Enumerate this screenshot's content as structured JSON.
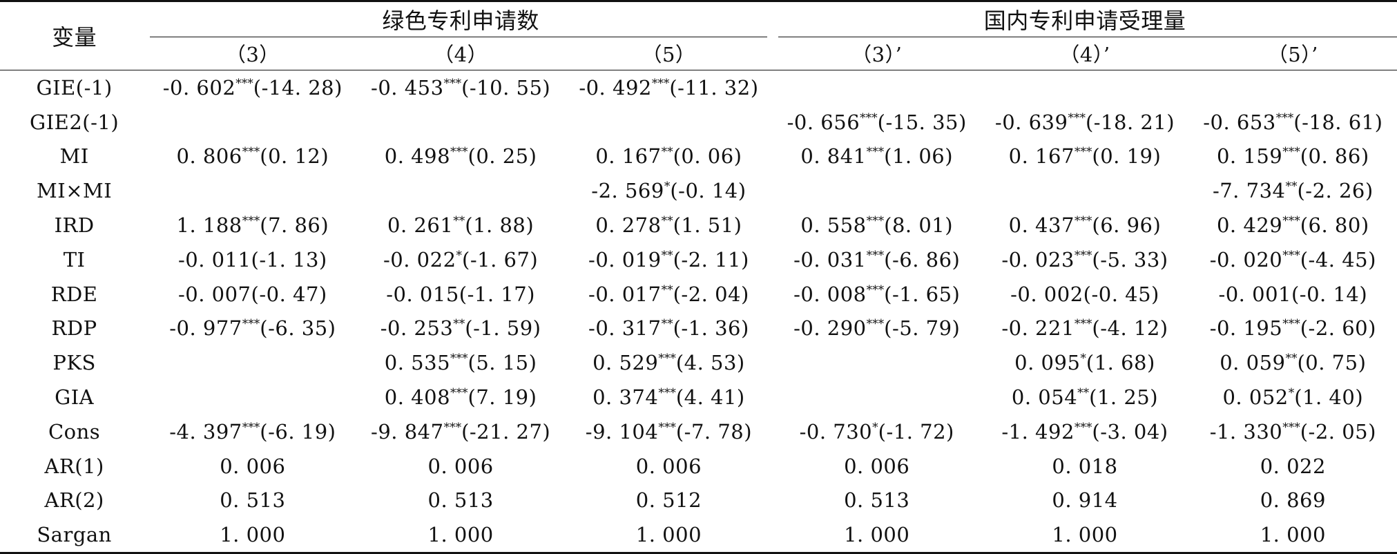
{
  "header": {
    "corner_label": "变量",
    "group_left": "绿色专利申请数",
    "group_right": "国内专利申请受理量",
    "columns": [
      "（3）",
      "（4）",
      "（5）",
      "（3）’",
      "（4）’",
      "（5）’"
    ]
  },
  "rows": [
    {
      "label": "GIE(-1)",
      "cells": [
        {
          "v": "-0. 602",
          "s": "***",
          "t": "(-14. 28)"
        },
        {
          "v": "-0. 453",
          "s": "***",
          "t": "(-10. 55)"
        },
        {
          "v": "-0. 492",
          "s": "***",
          "t": "(-11. 32)"
        },
        {
          "v": "",
          "s": "",
          "t": ""
        },
        {
          "v": "",
          "s": "",
          "t": ""
        },
        {
          "v": "",
          "s": "",
          "t": ""
        }
      ]
    },
    {
      "label": "GIE2(-1)",
      "cells": [
        {
          "v": "",
          "s": "",
          "t": ""
        },
        {
          "v": "",
          "s": "",
          "t": ""
        },
        {
          "v": "",
          "s": "",
          "t": ""
        },
        {
          "v": "-0. 656",
          "s": "***",
          "t": "(-15. 35)"
        },
        {
          "v": "-0. 639",
          "s": "***",
          "t": "(-18. 21)"
        },
        {
          "v": "-0. 653",
          "s": "***",
          "t": "(-18. 61)"
        }
      ]
    },
    {
      "label": "MI",
      "cells": [
        {
          "v": "0. 806",
          "s": "***",
          "t": "(0. 12)"
        },
        {
          "v": "0. 498",
          "s": "***",
          "t": "(0. 25)"
        },
        {
          "v": "0. 167",
          "s": "**",
          "t": "(0. 06)"
        },
        {
          "v": "0. 841",
          "s": "***",
          "t": "(1. 06)"
        },
        {
          "v": "0. 167",
          "s": "***",
          "t": "(0. 19)"
        },
        {
          "v": "0. 159",
          "s": "***",
          "t": "(0. 86)"
        }
      ]
    },
    {
      "label": "MI×MI",
      "cells": [
        {
          "v": "",
          "s": "",
          "t": ""
        },
        {
          "v": "",
          "s": "",
          "t": ""
        },
        {
          "v": "-2. 569",
          "s": "*",
          "t": "(-0. 14)"
        },
        {
          "v": "",
          "s": "",
          "t": ""
        },
        {
          "v": "",
          "s": "",
          "t": ""
        },
        {
          "v": "-7. 734",
          "s": "**",
          "t": "(-2. 26)"
        }
      ]
    },
    {
      "label": "IRD",
      "cells": [
        {
          "v": "1. 188",
          "s": "***",
          "t": "(7. 86)"
        },
        {
          "v": "0. 261",
          "s": "**",
          "t": "(1. 88)"
        },
        {
          "v": "0. 278",
          "s": "**",
          "t": "(1. 51)"
        },
        {
          "v": "0. 558",
          "s": "***",
          "t": "(8. 01)"
        },
        {
          "v": "0. 437",
          "s": "***",
          "t": "(6. 96)"
        },
        {
          "v": "0. 429",
          "s": "***",
          "t": "(6. 80)"
        }
      ]
    },
    {
      "label": "TI",
      "cells": [
        {
          "v": "-0. 011",
          "s": "",
          "t": "(-1. 13)"
        },
        {
          "v": "-0. 022",
          "s": "*",
          "t": "(-1. 67)"
        },
        {
          "v": "-0. 019",
          "s": "**",
          "t": "(-2. 11)"
        },
        {
          "v": "-0. 031",
          "s": "***",
          "t": "(-6. 86)"
        },
        {
          "v": "-0. 023",
          "s": "***",
          "t": "(-5. 33)"
        },
        {
          "v": "-0. 020",
          "s": "***",
          "t": "(-4. 45)"
        }
      ]
    },
    {
      "label": "RDE",
      "cells": [
        {
          "v": "-0. 007",
          "s": "",
          "t": "(-0. 47)"
        },
        {
          "v": "-0. 015",
          "s": "",
          "t": "(-1. 17)"
        },
        {
          "v": "-0. 017",
          "s": "**",
          "t": "(-2. 04)"
        },
        {
          "v": "-0. 008",
          "s": "***",
          "t": "(-1. 65)"
        },
        {
          "v": "-0. 002",
          "s": "",
          "t": "(-0. 45)"
        },
        {
          "v": "-0. 001",
          "s": "",
          "t": "(-0. 14)"
        }
      ]
    },
    {
      "label": "RDP",
      "cells": [
        {
          "v": "-0. 977",
          "s": "***",
          "t": "(-6. 35)"
        },
        {
          "v": "-0. 253",
          "s": "**",
          "t": "(-1. 59)"
        },
        {
          "v": "-0. 317",
          "s": "**",
          "t": "(-1. 36)"
        },
        {
          "v": "-0. 290",
          "s": "***",
          "t": "(-5. 79)"
        },
        {
          "v": "-0. 221",
          "s": "***",
          "t": "(-4. 12)"
        },
        {
          "v": "-0. 195",
          "s": "***",
          "t": "(-2. 60)"
        }
      ]
    },
    {
      "label": "PKS",
      "cells": [
        {
          "v": "",
          "s": "",
          "t": ""
        },
        {
          "v": "0. 535",
          "s": "***",
          "t": "(5. 15)"
        },
        {
          "v": "0. 529",
          "s": "***",
          "t": "(4. 53)"
        },
        {
          "v": "",
          "s": "",
          "t": ""
        },
        {
          "v": "0. 095",
          "s": "*",
          "t": "(1. 68)"
        },
        {
          "v": "0. 059",
          "s": "**",
          "t": "(0. 75)"
        }
      ]
    },
    {
      "label": "GIA",
      "cells": [
        {
          "v": "",
          "s": "",
          "t": ""
        },
        {
          "v": "0. 408",
          "s": "***",
          "t": "(7. 19)"
        },
        {
          "v": "0. 374",
          "s": "***",
          "t": "(4. 41)"
        },
        {
          "v": "",
          "s": "",
          "t": ""
        },
        {
          "v": "0. 054",
          "s": "**",
          "t": "(1. 25)"
        },
        {
          "v": "0. 052",
          "s": "*",
          "t": "(1. 40)"
        }
      ]
    },
    {
      "label": "Cons",
      "cells": [
        {
          "v": "-4. 397",
          "s": "***",
          "t": "(-6. 19)"
        },
        {
          "v": "-9. 847",
          "s": "***",
          "t": "(-21. 27)"
        },
        {
          "v": "-9. 104",
          "s": "***",
          "t": "(-7. 78)"
        },
        {
          "v": "-0. 730",
          "s": "*",
          "t": "(-1. 72)"
        },
        {
          "v": "-1. 492",
          "s": "***",
          "t": "(-3. 04)"
        },
        {
          "v": "-1. 330",
          "s": "***",
          "t": "(-2. 05)"
        }
      ]
    },
    {
      "label": "AR(1)",
      "cells": [
        {
          "v": "0. 006",
          "s": "",
          "t": ""
        },
        {
          "v": "0. 006",
          "s": "",
          "t": ""
        },
        {
          "v": "0. 006",
          "s": "",
          "t": ""
        },
        {
          "v": "0. 006",
          "s": "",
          "t": ""
        },
        {
          "v": "0. 018",
          "s": "",
          "t": ""
        },
        {
          "v": "0. 022",
          "s": "",
          "t": ""
        }
      ]
    },
    {
      "label": "AR(2)",
      "cells": [
        {
          "v": "0. 513",
          "s": "",
          "t": ""
        },
        {
          "v": "0. 513",
          "s": "",
          "t": ""
        },
        {
          "v": "0. 512",
          "s": "",
          "t": ""
        },
        {
          "v": "0. 513",
          "s": "",
          "t": ""
        },
        {
          "v": "0. 914",
          "s": "",
          "t": ""
        },
        {
          "v": "0. 869",
          "s": "",
          "t": ""
        }
      ]
    },
    {
      "label": "Sargan",
      "cells": [
        {
          "v": "1. 000",
          "s": "",
          "t": ""
        },
        {
          "v": "1. 000",
          "s": "",
          "t": ""
        },
        {
          "v": "1. 000",
          "s": "",
          "t": ""
        },
        {
          "v": "1. 000",
          "s": "",
          "t": ""
        },
        {
          "v": "1. 000",
          "s": "",
          "t": ""
        },
        {
          "v": "1. 000",
          "s": "",
          "t": ""
        }
      ]
    }
  ]
}
